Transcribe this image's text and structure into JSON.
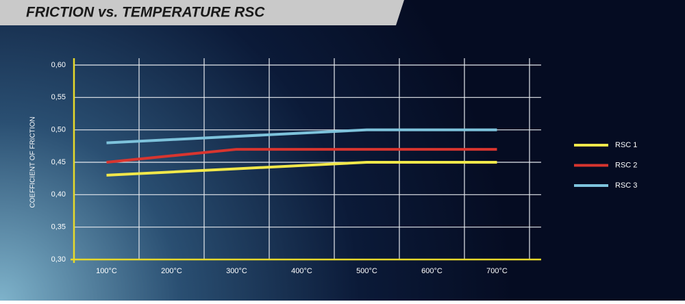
{
  "chart_data": {
    "type": "line",
    "title": "FRICTION vs. TEMPERATURE RSC",
    "y_label": "COEFFICIENT OF FRICTION",
    "categories": [
      "100°C",
      "200°C",
      "300°C",
      "400°C",
      "500°C",
      "600°C",
      "700°C"
    ],
    "series": [
      {
        "name": "RSC 1",
        "color": "#f2e84a",
        "values": [
          0.43,
          0.435,
          0.44,
          0.445,
          0.45,
          0.45,
          0.45
        ]
      },
      {
        "name": "RSC 2",
        "color": "#d8352f",
        "values": [
          0.45,
          0.46,
          0.47,
          0.47,
          0.47,
          0.47,
          0.47
        ]
      },
      {
        "name": "RSC 3",
        "color": "#7ec3dc",
        "values": [
          0.48,
          0.485,
          0.49,
          0.495,
          0.5,
          0.5,
          0.5
        ]
      }
    ],
    "ylim": [
      0.3,
      0.6
    ],
    "yticks": [
      {
        "value": 0.3,
        "label": "0,30"
      },
      {
        "value": 0.35,
        "label": "0,35"
      },
      {
        "value": 0.4,
        "label": "0,40"
      },
      {
        "value": 0.45,
        "label": "0,45"
      },
      {
        "value": 0.5,
        "label": "0,50"
      },
      {
        "value": 0.55,
        "label": "0,55"
      },
      {
        "value": 0.6,
        "label": "0,60"
      }
    ],
    "grid": true,
    "legend": "right"
  }
}
